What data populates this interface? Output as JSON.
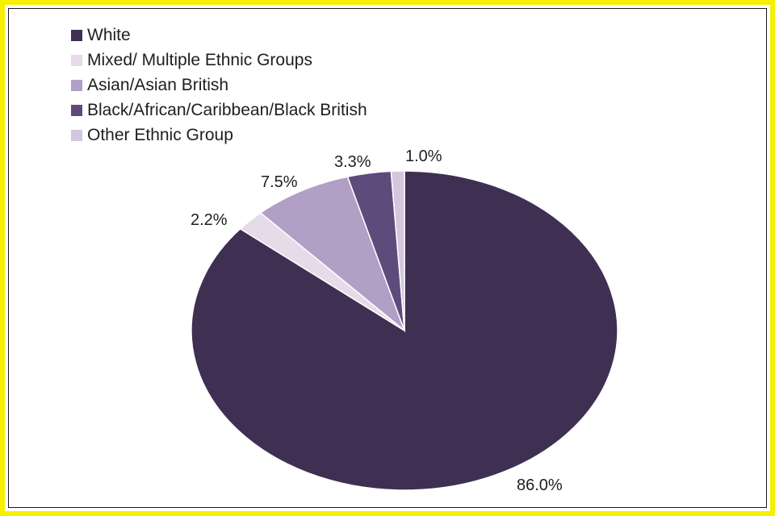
{
  "chart_data": {
    "type": "pie",
    "title": "",
    "categories": [
      "White",
      "Mixed/ Multiple Ethnic Groups",
      "Asian/Asian British",
      "Black/African/Caribbean/Black British",
      "Other Ethnic Group"
    ],
    "values": [
      86.0,
      2.2,
      7.5,
      3.3,
      1.0
    ],
    "labels": [
      "86.0%",
      "2.2%",
      "7.5%",
      "3.3%",
      "1.0%"
    ],
    "colors": [
      "#3f2f52",
      "#e6dbe9",
      "#b19fc6",
      "#5f4a7c",
      "#d3c6de"
    ],
    "legend_position": "top-left",
    "start_angle": "12 o'clock",
    "direction": "clockwise"
  }
}
